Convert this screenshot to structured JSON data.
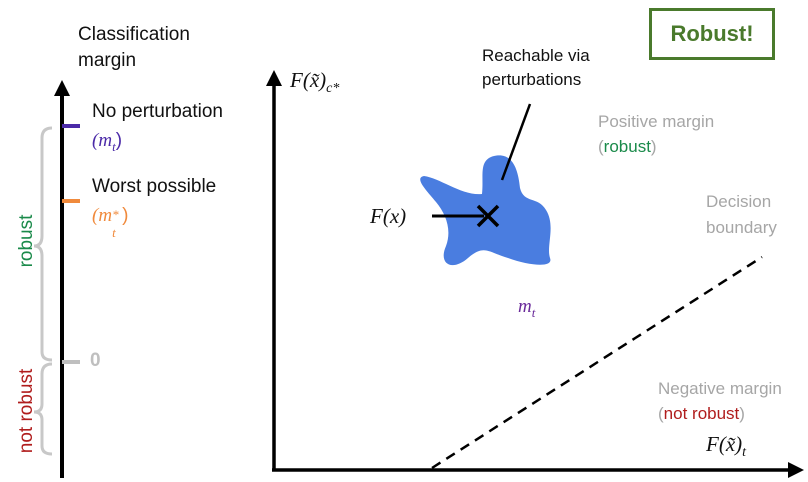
{
  "margin_axis": {
    "title_line1": "Classification",
    "title_line2": "margin",
    "no_perturbation": "No perturbation",
    "no_perturbation_symbol": "(m",
    "no_perturbation_sub": "t",
    "no_perturbation_close": ")",
    "worst_possible": "Worst possible",
    "worst_symbol": "(m",
    "worst_sub": "t",
    "worst_sup": "*",
    "worst_close": ")",
    "zero": "0",
    "robust": "robust",
    "not_robust": "not robust"
  },
  "badge": {
    "label": "Robust!"
  },
  "plot": {
    "y_axis_label": "F(x̃)",
    "y_axis_sub": "c*",
    "x_axis_label": "F(x̃)",
    "x_axis_sub": "t",
    "reachable_line1": "Reachable via",
    "reachable_line2": "perturbations",
    "fx_label": "F(x)",
    "positive_margin": "Positive margin",
    "positive_open": "(",
    "positive_robust": "robust",
    "positive_close": ")",
    "decision_line1": "Decision",
    "decision_line2": "boundary",
    "negative_margin": "Negative margin",
    "negative_open": "(",
    "negative_not_robust": "not robust",
    "negative_close": ")",
    "mt_symbol": "m",
    "mt_sub": "t"
  },
  "colors": {
    "no_perturbation": "#4b2aa8",
    "worst_possible": "#f08a3c",
    "robust": "#1a8a4a",
    "not_robust": "#b01c1c",
    "blob": "#4a7de0",
    "badge": "#4a7a2c",
    "gray_text": "#a6a6a6",
    "mt_purple": "#6a2a9a"
  }
}
